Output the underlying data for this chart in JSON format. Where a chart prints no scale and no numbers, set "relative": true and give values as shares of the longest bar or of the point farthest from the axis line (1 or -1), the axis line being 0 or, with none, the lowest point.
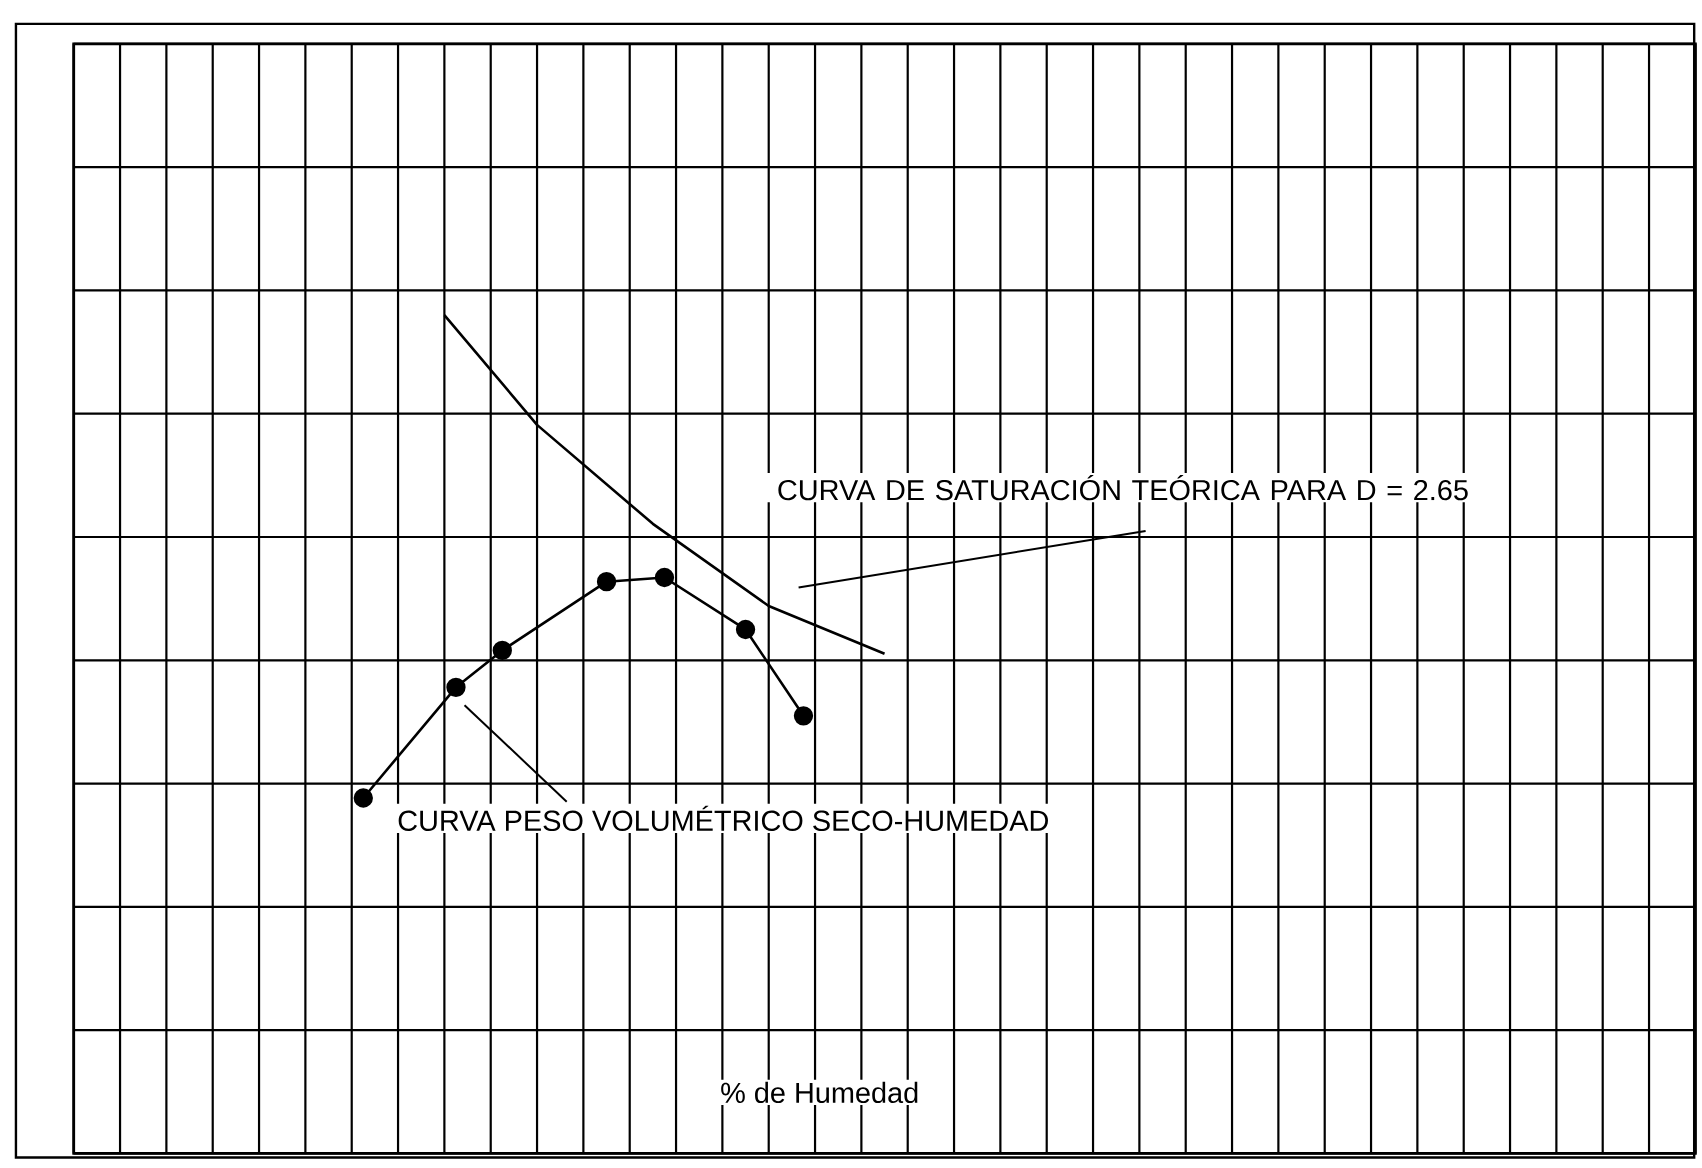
{
  "chart_data": {
    "type": "line",
    "xlabel": "% de Humedad",
    "relative": true,
    "grid": true,
    "marker": "none",
    "categories": [
      null,
      null,
      null,
      null,
      null,
      null,
      null,
      null,
      null,
      null,
      null,
      null,
      null,
      null,
      null,
      null,
      null,
      null,
      null,
      null,
      null,
      null,
      null,
      null,
      null,
      null,
      null,
      null,
      null,
      null,
      null,
      null,
      null,
      null,
      null,
      null,
      null,
      null,
      null,
      null,
      null,
      null,
      null,
      null,
      null,
      null,
      null,
      null,
      null,
      null,
      null,
      null,
      null,
      null,
      null,
      null,
      null,
      null,
      null,
      null,
      null,
      null,
      null,
      null,
      null,
      null,
      null,
      null,
      null,
      null,
      null,
      null,
      null,
      null,
      null,
      null,
      null,
      null,
      null,
      null,
      null,
      null,
      null,
      null,
      null,
      null,
      null,
      null,
      null,
      null,
      null,
      null,
      null,
      null,
      null,
      null,
      null,
      null,
      null,
      null,
      null,
      null,
      null,
      null,
      null,
      null,
      null,
      null,
      null,
      null,
      null,
      null,
      null,
      null,
      null,
      null,
      null,
      null,
      null,
      null,
      null,
      null,
      null,
      null,
      null,
      null,
      null,
      null,
      null,
      null,
      null,
      null,
      null,
      null,
      null,
      null,
      null,
      null,
      null,
      null,
      null
    ],
    "series": [
      {
        "color": "#000000",
        "values": [
          null,
          null,
          null,
          null,
          null,
          null,
          null,
          null,
          null,
          null,
          null,
          null,
          null,
          null,
          null,
          null,
          null,
          null,
          null,
          null,
          null,
          null,
          null,
          null,
          null,
          null,
          null,
          null,
          null,
          null,
          null,
          null,
          1,
          null,
          null,
          null,
          null,
          null,
          null,
          null,
          0.869,
          null,
          null,
          null,
          null,
          null,
          null,
          null,
          null,
          null,
          0.751,
          null,
          null,
          null,
          null,
          null,
          null,
          null,
          null,
          null,
          0.653,
          null,
          null,
          null,
          null,
          null,
          null,
          null,
          null,
          null,
          0.596,
          null,
          null,
          null,
          null,
          null,
          null,
          null,
          null,
          null,
          null,
          null,
          null,
          null,
          null,
          null,
          null,
          null,
          null,
          null,
          null,
          null,
          null,
          null,
          null,
          null,
          null,
          null,
          null,
          null,
          null,
          null,
          null,
          null,
          null,
          null,
          null,
          null,
          null,
          null,
          null,
          null,
          null,
          null,
          null,
          null,
          null,
          null,
          null,
          null,
          null,
          null,
          null,
          null,
          null,
          null,
          null,
          null,
          null,
          null,
          null,
          null,
          null,
          null,
          null,
          null,
          null,
          null,
          null,
          null,
          null
        ]
      },
      {
        "color": "#000000",
        "marker": "circle",
        "values": [
          null,
          null,
          null,
          null,
          null,
          null,
          null,
          null,
          null,
          null,
          null,
          null,
          null,
          null,
          null,
          null,
          null,
          null,
          null,
          null,
          null,
          null,
          null,
          null,
          null,
          0.424,
          null,
          null,
          null,
          null,
          null,
          null,
          null,
          0.556,
          null,
          null,
          null,
          0.6,
          null,
          null,
          null,
          null,
          null,
          null,
          null,
          null,
          0.682,
          null,
          null,
          null,
          null,
          0.687,
          null,
          null,
          null,
          null,
          null,
          null,
          0.625,
          null,
          null,
          null,
          null,
          0.522,
          null,
          null,
          null,
          null,
          null,
          null,
          null,
          null,
          null,
          null,
          null,
          null,
          null,
          null,
          null,
          null,
          null,
          null,
          null,
          null,
          null,
          null,
          null,
          null,
          null,
          null,
          null,
          null,
          null,
          null,
          null,
          null,
          null,
          null,
          null,
          null,
          null,
          null,
          null,
          null,
          null,
          null,
          null,
          null,
          null,
          null,
          null,
          null,
          null,
          null,
          null,
          null,
          null,
          null,
          null,
          null,
          null,
          null,
          null,
          null,
          null,
          null,
          null,
          null,
          null,
          null,
          null,
          null,
          null,
          null,
          null,
          null,
          null,
          null,
          null,
          null,
          null
        ]
      }
    ],
    "annotations": [
      "CURVA DE SATURACIÓN TEÓRICA PARA D = 2.65",
      "CURVA PESO VOLUMÉTRICO SECO-HUMEDAD"
    ]
  }
}
